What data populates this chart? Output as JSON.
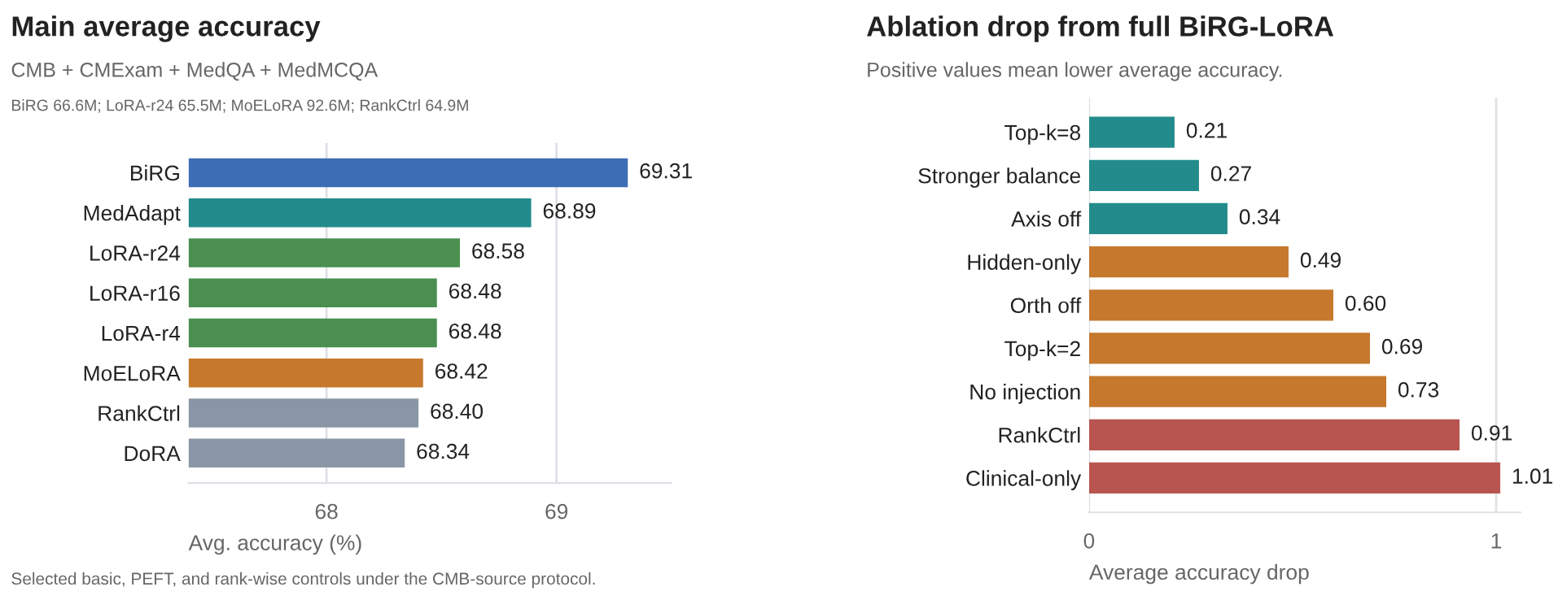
{
  "chart_data": [
    {
      "type": "bar",
      "orientation": "horizontal",
      "title": "Main average accuracy",
      "subtitle": "CMB + CMExam + MedQA + MedMCQA",
      "annotations": [
        "BiRG 66.6M; LoRA-r24 65.5M; MoELoRA 92.6M; RankCtrl 64.9M",
        "Selected basic, PEFT, and rank-wise controls under the CMB-source protocol."
      ],
      "xlabel": "Avg. accuracy (%)",
      "categories": [
        "BiRG",
        "MedAdapt",
        "LoRA-r24",
        "LoRA-r16",
        "LoRA-r4",
        "MoELoRA",
        "RankCtrl",
        "DoRA"
      ],
      "values": [
        69.31,
        68.89,
        68.58,
        68.48,
        68.48,
        68.42,
        68.4,
        68.34
      ],
      "value_labels": [
        "69.31",
        "68.89",
        "68.58",
        "68.48",
        "68.48",
        "68.42",
        "68.40",
        "68.34"
      ],
      "colors": [
        "#3d6db5",
        "#238b8b",
        "#4a8f50",
        "#4a8f50",
        "#4a8f50",
        "#c6782c",
        "#8a96a5",
        "#8a96a5"
      ],
      "xlim": [
        67.4,
        69.5
      ],
      "xticks": [
        68,
        69
      ],
      "grid": "x",
      "legend": false
    },
    {
      "type": "bar",
      "orientation": "horizontal",
      "title": "Ablation drop from full BiRG-LoRA",
      "subtitle": "Positive values mean lower average accuracy.",
      "xlabel": "Average accuracy drop",
      "categories": [
        "Top-k=8",
        "Stronger balance",
        "Axis off",
        "Hidden-only",
        "Orth off",
        "Top-k=2",
        "No injection",
        "RankCtrl",
        "Clinical-only"
      ],
      "values": [
        0.21,
        0.27,
        0.34,
        0.49,
        0.6,
        0.69,
        0.73,
        0.91,
        1.01
      ],
      "value_labels": [
        "0.21",
        "0.27",
        "0.34",
        "0.49",
        "0.60",
        "0.69",
        "0.73",
        "0.91",
        "1.01"
      ],
      "colors": [
        "#238b8b",
        "#238b8b",
        "#238b8b",
        "#c6782c",
        "#c6782c",
        "#c6782c",
        "#c6782c",
        "#b85550",
        "#b85550"
      ],
      "xlim": [
        0,
        1.06
      ],
      "xticks": [
        0,
        1
      ],
      "grid": "x",
      "legend": false
    }
  ]
}
